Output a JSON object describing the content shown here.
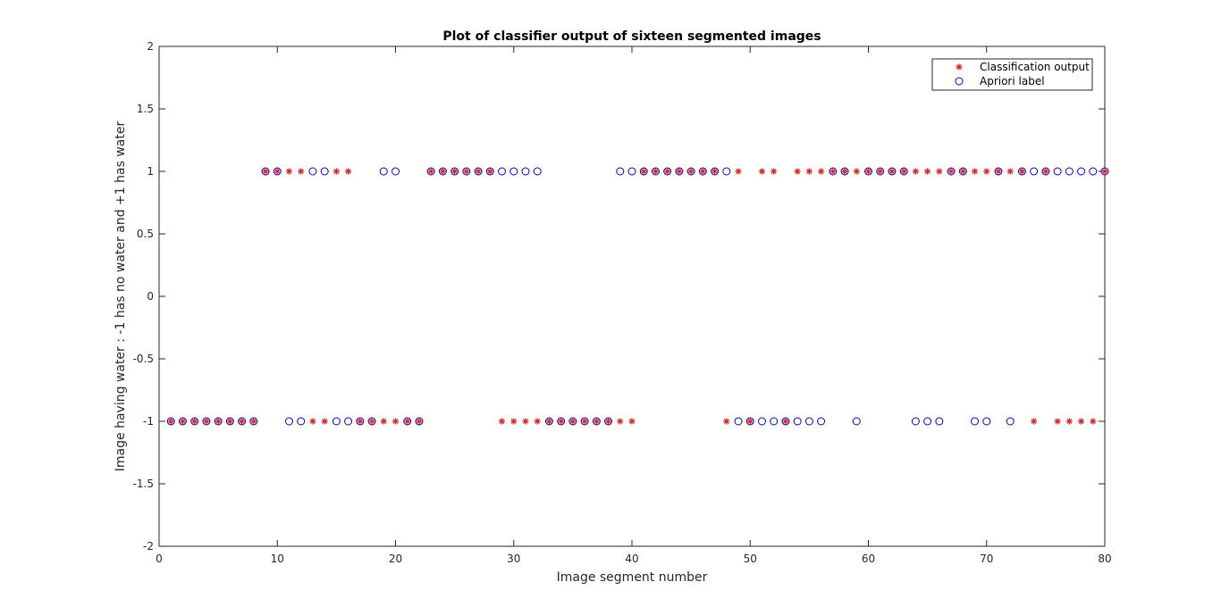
{
  "chart_data": {
    "type": "scatter",
    "title": "Plot of classifier output of sixteen segmented images",
    "xlabel": "Image segment number",
    "ylabel": "Image having water : -1 has no water and +1 has water",
    "xlim": [
      0,
      80
    ],
    "ylim": [
      -2,
      2
    ],
    "xticks": [
      "0",
      "10",
      "20",
      "30",
      "40",
      "50",
      "60",
      "70",
      "80"
    ],
    "yticks": [
      "-2",
      "-1.5",
      "-1",
      "-0.5",
      "0",
      "0.5",
      "1",
      "1.5",
      "2"
    ],
    "grid": false,
    "legend_position": "top-right",
    "series": [
      {
        "name": "Classification output",
        "marker": "asterisk",
        "color": "#d62728",
        "x": [
          1,
          2,
          3,
          4,
          5,
          6,
          7,
          8,
          9,
          10,
          11,
          12,
          13,
          14,
          15,
          16,
          17,
          18,
          19,
          20,
          21,
          22,
          23,
          24,
          25,
          26,
          27,
          28,
          29,
          30,
          31,
          32,
          33,
          34,
          35,
          36,
          37,
          38,
          39,
          40,
          41,
          42,
          43,
          44,
          45,
          46,
          47,
          48,
          49,
          50,
          51,
          52,
          53,
          54,
          55,
          56,
          57,
          58,
          59,
          60,
          61,
          62,
          63,
          64,
          65,
          66,
          67,
          68,
          69,
          70,
          71,
          72,
          73,
          74,
          75,
          76,
          77,
          78,
          79,
          80
        ],
        "y": [
          -1,
          -1,
          -1,
          -1,
          -1,
          -1,
          -1,
          -1,
          1,
          1,
          1,
          1,
          -1,
          -1,
          1,
          1,
          -1,
          -1,
          -1,
          -1,
          -1,
          -1,
          1,
          1,
          1,
          1,
          1,
          1,
          -1,
          -1,
          -1,
          -1,
          -1,
          -1,
          -1,
          -1,
          -1,
          -1,
          -1,
          -1,
          1,
          1,
          1,
          1,
          1,
          1,
          1,
          -1,
          1,
          -1,
          1,
          1,
          -1,
          1,
          1,
          1,
          1,
          1,
          1,
          1,
          1,
          1,
          1,
          1,
          1,
          1,
          1,
          1,
          1,
          1,
          1,
          1,
          1,
          -1,
          1,
          -1,
          -1,
          -1,
          -1,
          1
        ]
      },
      {
        "name": "Apriori label",
        "marker": "circle",
        "color": "#0000cc",
        "x": [
          1,
          2,
          3,
          4,
          5,
          6,
          7,
          8,
          9,
          10,
          11,
          12,
          13,
          14,
          15,
          16,
          17,
          18,
          19,
          20,
          21,
          22,
          23,
          24,
          25,
          26,
          27,
          28,
          29,
          30,
          31,
          32,
          33,
          34,
          35,
          36,
          37,
          38,
          39,
          40,
          41,
          42,
          43,
          44,
          45,
          46,
          47,
          48,
          49,
          50,
          51,
          52,
          53,
          54,
          55,
          56,
          57,
          58,
          59,
          60,
          61,
          62,
          63,
          64,
          65,
          66,
          67,
          68,
          69,
          70,
          71,
          72,
          73,
          74,
          75,
          76,
          77,
          78,
          79,
          80
        ],
        "y": [
          -1,
          -1,
          -1,
          -1,
          -1,
          -1,
          -1,
          -1,
          1,
          1,
          -1,
          -1,
          1,
          1,
          -1,
          -1,
          -1,
          -1,
          1,
          1,
          -1,
          -1,
          1,
          1,
          1,
          1,
          1,
          1,
          1,
          1,
          1,
          1,
          -1,
          -1,
          -1,
          -1,
          -1,
          -1,
          1,
          1,
          1,
          1,
          1,
          1,
          1,
          1,
          1,
          1,
          -1,
          -1,
          -1,
          -1,
          -1,
          -1,
          -1,
          -1,
          1,
          1,
          -1,
          1,
          1,
          1,
          1,
          -1,
          -1,
          -1,
          1,
          1,
          -1,
          -1,
          1,
          -1,
          1,
          1,
          1,
          1,
          1,
          1,
          1,
          1
        ]
      }
    ]
  }
}
